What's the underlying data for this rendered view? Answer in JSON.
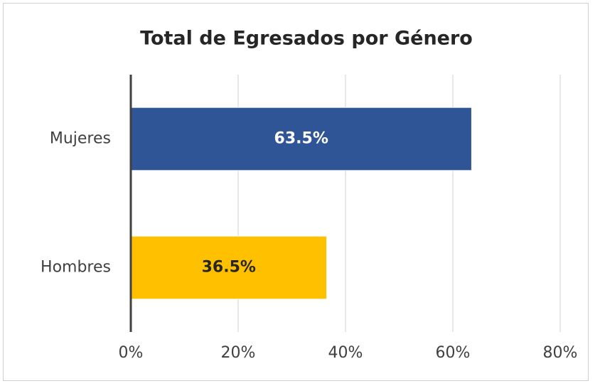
{
  "chart_data": {
    "type": "bar",
    "orientation": "horizontal",
    "title": "Total de Egresados por Género",
    "categories": [
      "Mujeres",
      "Hombres"
    ],
    "values": [
      63.5,
      36.5
    ],
    "value_labels": [
      "63.5%",
      "36.5%"
    ],
    "colors": [
      "#2f5597",
      "#ffc000"
    ],
    "xlim": [
      0,
      80
    ],
    "xticks": [
      {
        "value": 0,
        "label": "0%"
      },
      {
        "value": 20,
        "label": "20%"
      },
      {
        "value": 40,
        "label": "40%"
      },
      {
        "value": 60,
        "label": "60%"
      },
      {
        "value": 80,
        "label": "80%"
      }
    ],
    "grid": true
  }
}
